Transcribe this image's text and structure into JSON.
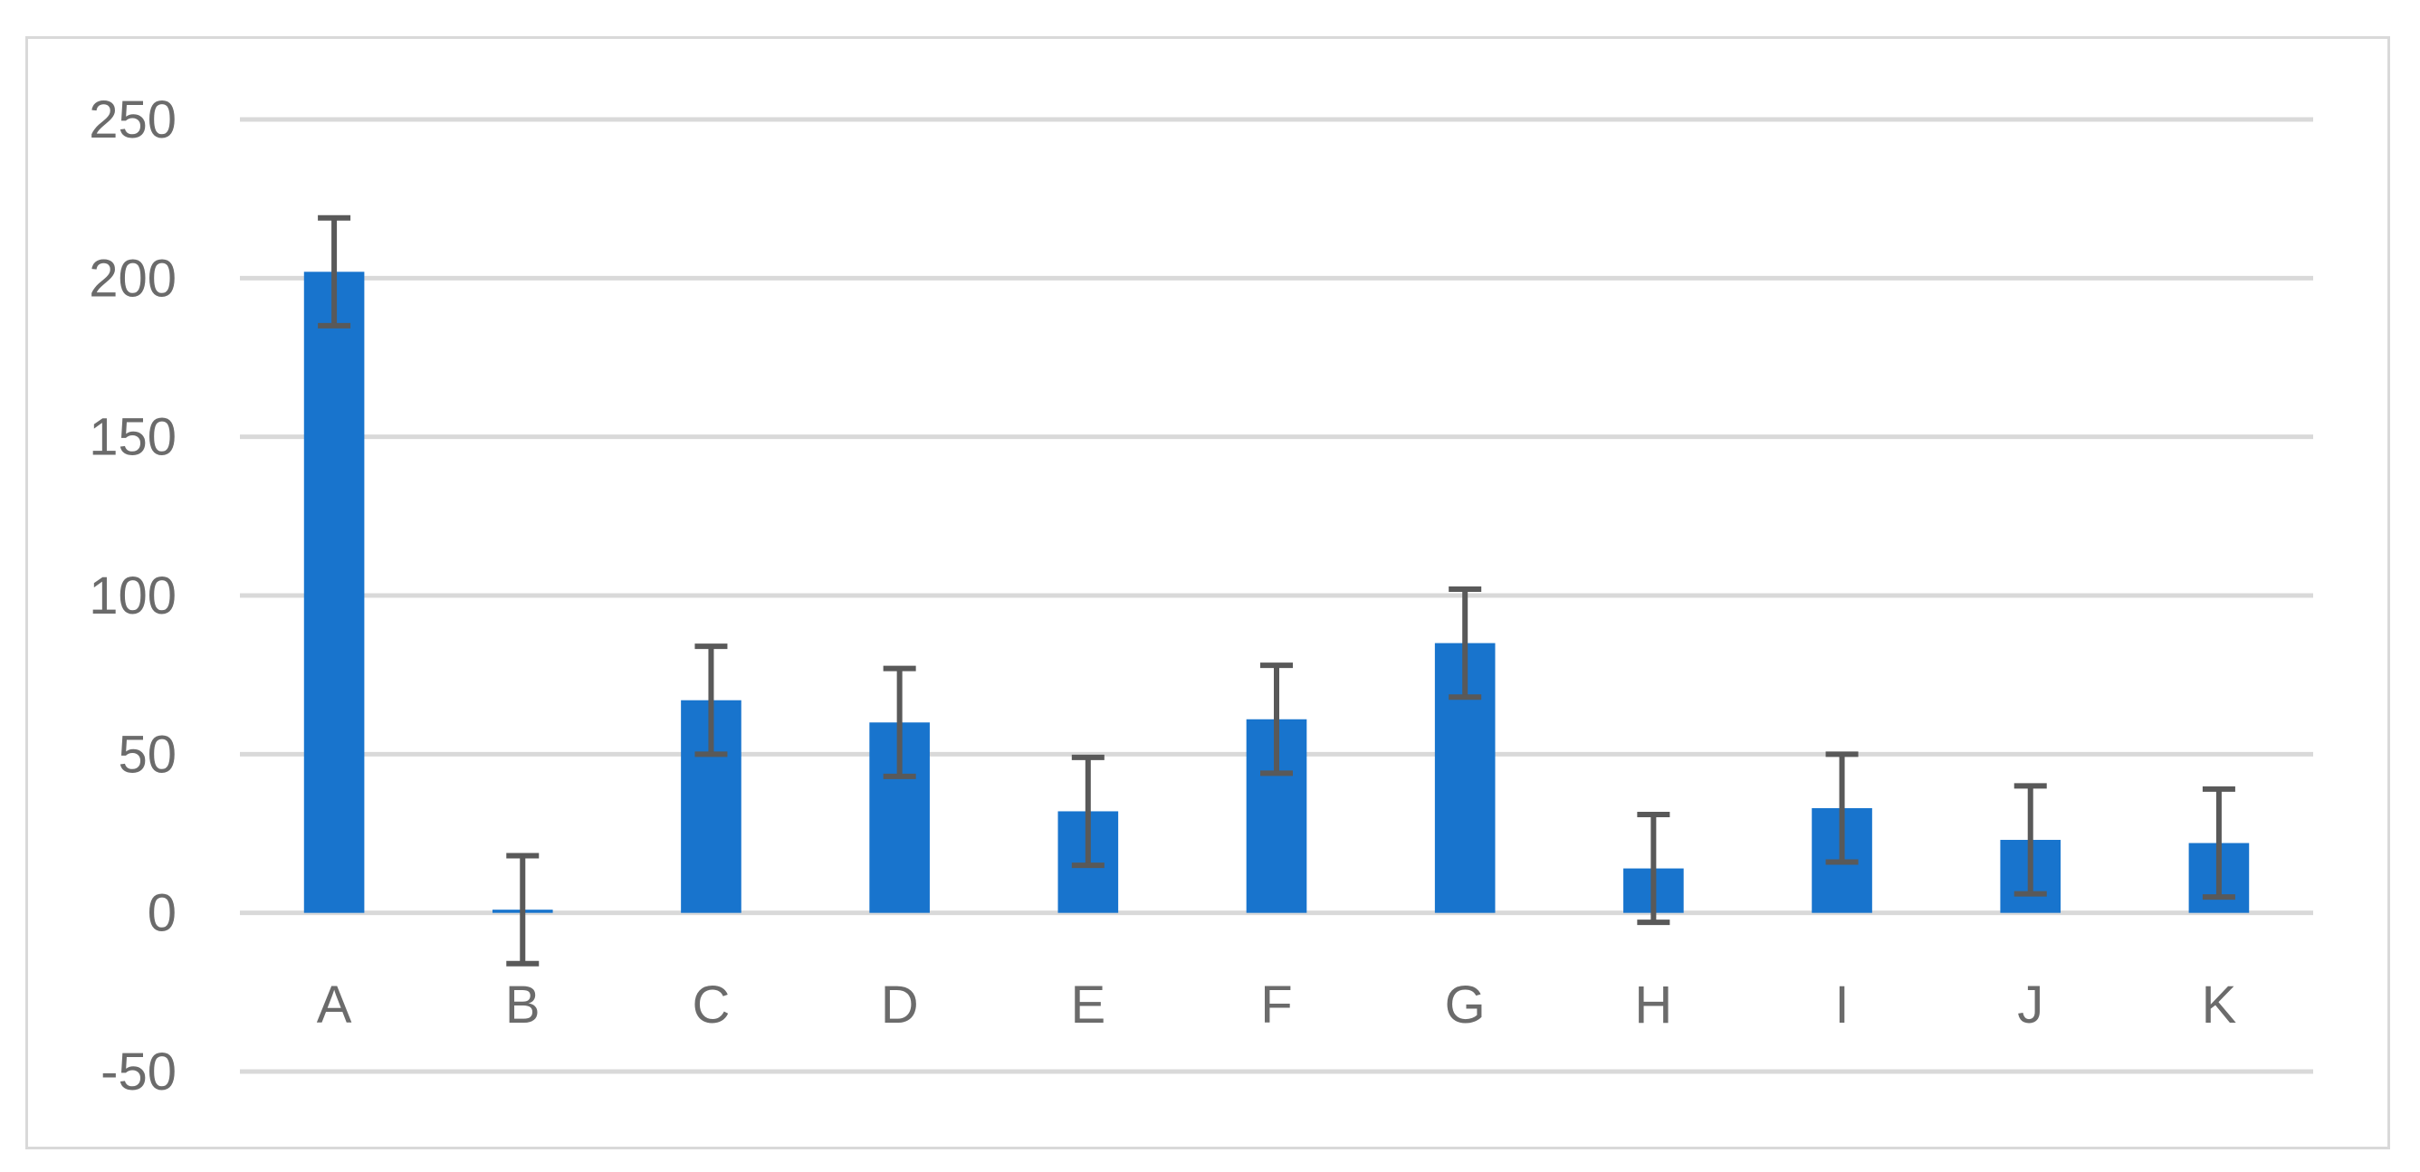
{
  "chart_data": {
    "type": "bar",
    "title": "",
    "xlabel": "",
    "ylabel": "",
    "categories": [
      "A",
      "B",
      "C",
      "D",
      "E",
      "F",
      "G",
      "H",
      "I",
      "J",
      "K"
    ],
    "series": [
      {
        "values": [
          202,
          1,
          67,
          60,
          32,
          61,
          85,
          14,
          33,
          23,
          22
        ],
        "error": [
          17,
          17,
          17,
          17,
          17,
          17,
          17,
          17,
          17,
          17,
          17
        ],
        "color": "#1874CD"
      }
    ],
    "ylim": [
      -50,
      250
    ],
    "yticks": [
      "250",
      "200",
      "150",
      "100",
      "50",
      "0",
      "-50"
    ],
    "grid": true,
    "legend": "none",
    "colors": {
      "bar": "#1874CD",
      "error_bar": "#595959",
      "gridline": "#d9d9d9",
      "text": "#6b6b6b"
    }
  }
}
